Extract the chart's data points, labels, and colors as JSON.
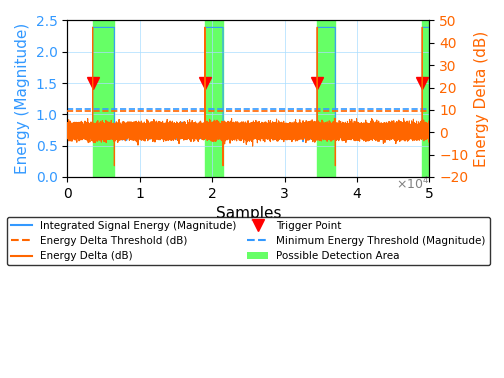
{
  "xlim": [
    0,
    50000
  ],
  "ylim_left": [
    0,
    2.5
  ],
  "ylim_right": [
    -20,
    50
  ],
  "xlabel": "Samples",
  "ylabel_left": "Energy (Magnitude)",
  "ylabel_right": "Energy Delta (dB)",
  "x_ticks": [
    0,
    10000,
    20000,
    30000,
    40000,
    50000
  ],
  "x_tick_labels": [
    "0",
    "1",
    "2",
    "3",
    "4",
    "5"
  ],
  "x_exp": "×10⁴",
  "left_yticks": [
    0,
    0.5,
    1.0,
    1.5,
    2.0,
    2.5
  ],
  "right_yticks": [
    -20,
    -10,
    0,
    10,
    20,
    30,
    40,
    50
  ],
  "color_blue": "#3399FF",
  "color_orange": "#FF6600",
  "color_green": "#66FF66",
  "bg_color": "#FFFFFF",
  "grid_color": "#AADDFF",
  "n_samples": 50000,
  "signal_segments": [
    {
      "start": 3500,
      "end": 6500,
      "value": 2.39
    },
    {
      "start": 19000,
      "end": 21500,
      "value": 2.39
    },
    {
      "start": 34500,
      "end": 37000,
      "value": 2.39
    },
    {
      "start": 49000,
      "end": 50000,
      "value": 2.39
    }
  ],
  "baseline_energy": 0.72,
  "noise_amplitude": 0.035,
  "min_energy_threshold": 1.08,
  "energy_delta_threshold_db": 9.5,
  "trigger_points": [
    3500,
    19000,
    34500,
    49000
  ],
  "trigger_y_left": 1.5,
  "detection_areas": [
    {
      "start": 3500,
      "end": 6500
    },
    {
      "start": 19000,
      "end": 21500
    },
    {
      "start": 34500,
      "end": 37000
    },
    {
      "start": 49000,
      "end": 50000
    }
  ],
  "dip_points": [
    6500,
    21500,
    37000
  ],
  "dip_value_db": -15,
  "spike_value_db": 47,
  "energy_delta_baseline_db": 0.5,
  "legend_labels": [
    "Integrated Signal Energy (Magnitude)",
    "Energy Delta Threshold (dB)",
    "Energy Delta (dB)",
    "Trigger Point",
    "Minimum Energy Threshold (Magnitude)",
    "Possible Detection Area"
  ]
}
